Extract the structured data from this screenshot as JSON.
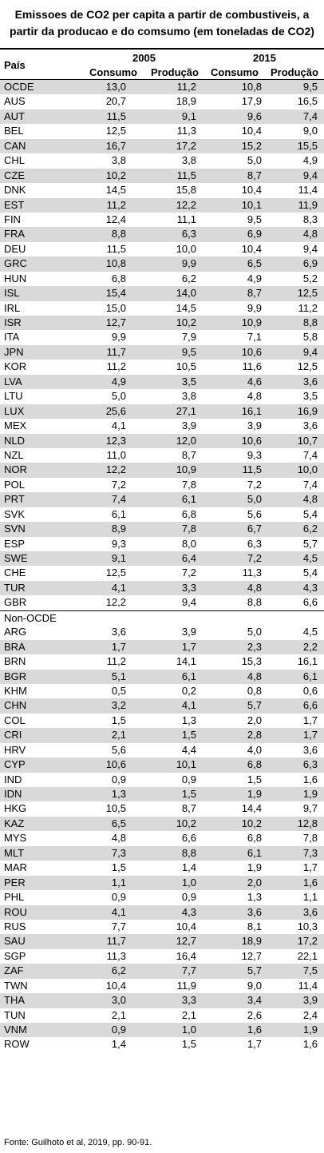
{
  "title_line1": "Emissoes de CO2 per capita a partir de combustiveis, a",
  "title_line2": "partir da producao e do comsumo (em toneladas de CO2)",
  "header": {
    "country": "País",
    "year1": "2005",
    "year2": "2015",
    "col_consumo": "Consumo",
    "col_producao": "Produção"
  },
  "oecd_rows": [
    [
      "OCDE",
      "13,0",
      "11,2",
      "10,8",
      "9,5"
    ],
    [
      "AUS",
      "20,7",
      "18,9",
      "17,9",
      "16,5"
    ],
    [
      "AUT",
      "11,5",
      "9,1",
      "9,6",
      "7,4"
    ],
    [
      "BEL",
      "12,5",
      "11,3",
      "10,4",
      "9,0"
    ],
    [
      "CAN",
      "16,7",
      "17,2",
      "15,2",
      "15,5"
    ],
    [
      "CHL",
      "3,8",
      "3,8",
      "5,0",
      "4,9"
    ],
    [
      "CZE",
      "10,2",
      "11,5",
      "8,7",
      "9,4"
    ],
    [
      "DNK",
      "14,5",
      "15,8",
      "10,4",
      "11,4"
    ],
    [
      "EST",
      "11,2",
      "12,2",
      "10,1",
      "11,9"
    ],
    [
      "FIN",
      "12,4",
      "11,1",
      "9,5",
      "8,3"
    ],
    [
      "FRA",
      "8,8",
      "6,3",
      "6,9",
      "4,8"
    ],
    [
      "DEU",
      "11,5",
      "10,0",
      "10,4",
      "9,4"
    ],
    [
      "GRC",
      "10,8",
      "9,9",
      "6,5",
      "6,9"
    ],
    [
      "HUN",
      "6,8",
      "6,2",
      "4,9",
      "5,2"
    ],
    [
      "ISL",
      "15,4",
      "14,0",
      "8,7",
      "12,5"
    ],
    [
      "IRL",
      "15,0",
      "14,5",
      "9,9",
      "11,2"
    ],
    [
      "ISR",
      "12,7",
      "10,2",
      "10,9",
      "8,8"
    ],
    [
      "ITA",
      "9,9",
      "7,9",
      "7,1",
      "5,8"
    ],
    [
      "JPN",
      "11,7",
      "9,5",
      "10,6",
      "9,4"
    ],
    [
      "KOR",
      "11,2",
      "10,5",
      "11,6",
      "12,5"
    ],
    [
      "LVA",
      "4,9",
      "3,5",
      "4,6",
      "3,6"
    ],
    [
      "LTU",
      "5,0",
      "3,8",
      "4,8",
      "3,5"
    ],
    [
      "LUX",
      "25,6",
      "27,1",
      "16,1",
      "16,9"
    ],
    [
      "MEX",
      "4,1",
      "3,9",
      "3,9",
      "3,6"
    ],
    [
      "NLD",
      "12,3",
      "12,0",
      "10,6",
      "10,7"
    ],
    [
      "NZL",
      "11,0",
      "8,7",
      "9,3",
      "7,4"
    ],
    [
      "NOR",
      "12,2",
      "10,9",
      "11,5",
      "10,0"
    ],
    [
      "POL",
      "7,2",
      "7,8",
      "7,2",
      "7,4"
    ],
    [
      "PRT",
      "7,4",
      "6,1",
      "5,0",
      "4,8"
    ],
    [
      "SVK",
      "6,1",
      "6,8",
      "5,6",
      "5,4"
    ],
    [
      "SVN",
      "8,9",
      "7,8",
      "6,7",
      "6,2"
    ],
    [
      "ESP",
      "9,3",
      "8,0",
      "6,3",
      "5,7"
    ],
    [
      "SWE",
      "9,1",
      "6,4",
      "7,2",
      "4,5"
    ],
    [
      "CHE",
      "12,5",
      "7,2",
      "11,3",
      "5,4"
    ],
    [
      "TUR",
      "4,1",
      "3,3",
      "4,8",
      "4,3"
    ],
    [
      "GBR",
      "12,2",
      "9,4",
      "8,8",
      "6,6"
    ]
  ],
  "non_oecd_label": "Non-OCDE",
  "non_oecd_rows": [
    [
      "ARG",
      "3,6",
      "3,9",
      "5,0",
      "4,5"
    ],
    [
      "BRA",
      "1,7",
      "1,7",
      "2,3",
      "2,2"
    ],
    [
      "BRN",
      "11,2",
      "14,1",
      "15,3",
      "16,1"
    ],
    [
      "BGR",
      "5,1",
      "6,1",
      "4,8",
      "6,1"
    ],
    [
      "KHM",
      "0,5",
      "0,2",
      "0,8",
      "0,6"
    ],
    [
      "CHN",
      "3,2",
      "4,1",
      "5,7",
      "6,6"
    ],
    [
      "COL",
      "1,5",
      "1,3",
      "2,0",
      "1,7"
    ],
    [
      "CRI",
      "2,1",
      "1,5",
      "2,8",
      "1,7"
    ],
    [
      "HRV",
      "5,6",
      "4,4",
      "4,0",
      "3,6"
    ],
    [
      "CYP",
      "10,6",
      "10,1",
      "6,8",
      "6,3"
    ],
    [
      "IND",
      "0,9",
      "0,9",
      "1,5",
      "1,6"
    ],
    [
      "IDN",
      "1,3",
      "1,5",
      "1,9",
      "1,9"
    ],
    [
      "HKG",
      "10,5",
      "8,7",
      "14,4",
      "9,7"
    ],
    [
      "KAZ",
      "6,5",
      "10,2",
      "10,2",
      "12,8"
    ],
    [
      "MYS",
      "4,8",
      "6,6",
      "6,8",
      "7,8"
    ],
    [
      "MLT",
      "7,3",
      "8,8",
      "6,1",
      "7,3"
    ],
    [
      "MAR",
      "1,5",
      "1,4",
      "1,9",
      "1,7"
    ],
    [
      "PER",
      "1,1",
      "1,0",
      "2,0",
      "1,6"
    ],
    [
      "PHL",
      "0,9",
      "0,9",
      "1,3",
      "1,1"
    ],
    [
      "ROU",
      "4,1",
      "4,3",
      "3,6",
      "3,6"
    ],
    [
      "RUS",
      "7,7",
      "10,4",
      "8,1",
      "10,3"
    ],
    [
      "SAU",
      "11,7",
      "12,7",
      "18,9",
      "17,2"
    ],
    [
      "SGP",
      "11,3",
      "16,4",
      "12,7",
      "22,1"
    ],
    [
      "ZAF",
      "6,2",
      "7,7",
      "5,7",
      "7,5"
    ],
    [
      "TWN",
      "10,4",
      "11,9",
      "9,0",
      "11,4"
    ],
    [
      "THA",
      "3,0",
      "3,3",
      "3,4",
      "3,9"
    ],
    [
      "TUN",
      "2,1",
      "2,1",
      "2,6",
      "2,4"
    ],
    [
      "VNM",
      "0,9",
      "1,0",
      "1,6",
      "1,9"
    ],
    [
      "ROW",
      "1,4",
      "1,5",
      "1,7",
      "1,6"
    ]
  ],
  "source": "Fonte: Guilhoto et al, 2019, pp. 90-91."
}
